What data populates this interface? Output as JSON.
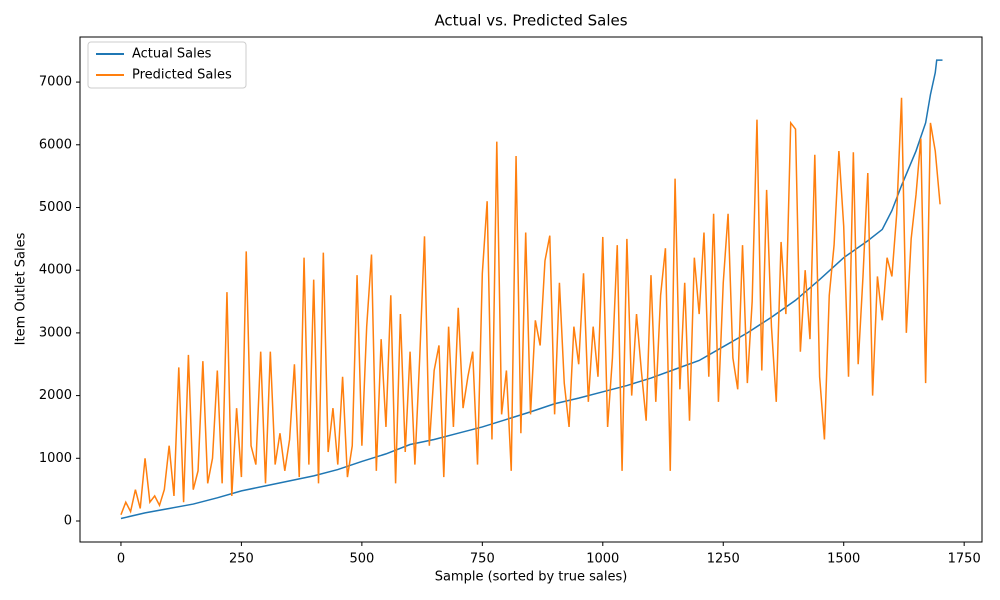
{
  "chart_data": {
    "type": "line",
    "title": "Actual vs. Predicted Sales",
    "x_label": "Sample (sorted by true sales)",
    "y_label": "Item Outlet Sales",
    "xlim": [
      -85,
      1787
    ],
    "ylim": [
      -335,
      7719
    ],
    "xticks": [
      0,
      250,
      500,
      750,
      1000,
      1250,
      1500,
      1750
    ],
    "yticks": [
      0,
      1000,
      2000,
      3000,
      4000,
      5000,
      6000,
      7000
    ],
    "grid": false,
    "legend": "upper left",
    "series": [
      {
        "name": "Actual Sales",
        "color": "#1f77b4",
        "x": [
          0,
          50,
          100,
          150,
          200,
          250,
          300,
          350,
          400,
          450,
          500,
          550,
          600,
          650,
          700,
          750,
          800,
          850,
          900,
          950,
          1000,
          1050,
          1100,
          1150,
          1200,
          1250,
          1300,
          1350,
          1400,
          1450,
          1500,
          1550,
          1580,
          1600,
          1620,
          1650,
          1670,
          1680,
          1690,
          1693,
          1705
        ],
        "values": [
          40,
          130,
          200,
          270,
          370,
          480,
          560,
          640,
          720,
          820,
          950,
          1070,
          1220,
          1300,
          1400,
          1500,
          1620,
          1740,
          1870,
          1960,
          2060,
          2160,
          2280,
          2420,
          2560,
          2780,
          3000,
          3250,
          3520,
          3850,
          4200,
          4470,
          4650,
          4950,
          5350,
          5900,
          6350,
          6800,
          7150,
          7350,
          7350
        ]
      },
      {
        "name": "Predicted Sales",
        "color": "#ff7f0e",
        "x": [
          0,
          10,
          20,
          30,
          40,
          50,
          60,
          70,
          80,
          90,
          100,
          110,
          120,
          130,
          140,
          150,
          160,
          170,
          180,
          190,
          200,
          210,
          220,
          230,
          240,
          250,
          260,
          270,
          280,
          290,
          300,
          310,
          320,
          330,
          340,
          350,
          360,
          370,
          380,
          390,
          400,
          410,
          420,
          430,
          440,
          450,
          460,
          470,
          480,
          490,
          500,
          510,
          520,
          530,
          540,
          550,
          560,
          570,
          580,
          590,
          600,
          610,
          620,
          630,
          640,
          650,
          660,
          670,
          680,
          690,
          700,
          710,
          720,
          730,
          740,
          750,
          760,
          770,
          780,
          790,
          800,
          810,
          820,
          830,
          840,
          850,
          860,
          870,
          880,
          890,
          900,
          910,
          920,
          930,
          940,
          950,
          960,
          970,
          980,
          990,
          1000,
          1010,
          1020,
          1030,
          1040,
          1050,
          1060,
          1070,
          1080,
          1090,
          1100,
          1110,
          1120,
          1130,
          1140,
          1150,
          1160,
          1170,
          1180,
          1190,
          1200,
          1210,
          1220,
          1230,
          1240,
          1250,
          1260,
          1270,
          1280,
          1290,
          1300,
          1310,
          1320,
          1330,
          1340,
          1350,
          1360,
          1370,
          1380,
          1390,
          1400,
          1410,
          1420,
          1430,
          1440,
          1450,
          1460,
          1470,
          1480,
          1490,
          1500,
          1510,
          1520,
          1530,
          1540,
          1550,
          1560,
          1570,
          1580,
          1590,
          1600,
          1610,
          1620,
          1630,
          1640,
          1650,
          1660,
          1670,
          1680,
          1690,
          1700
        ],
        "values": [
          100,
          300,
          150,
          500,
          200,
          1000,
          300,
          400,
          250,
          500,
          1200,
          400,
          2450,
          300,
          2650,
          500,
          800,
          2550,
          600,
          1000,
          2400,
          600,
          3650,
          400,
          1800,
          700,
          4300,
          1200,
          900,
          2700,
          600,
          2700,
          900,
          1400,
          800,
          1300,
          2500,
          700,
          4200,
          900,
          3850,
          600,
          4280,
          1100,
          1800,
          900,
          2300,
          700,
          1200,
          3920,
          1200,
          3100,
          4250,
          800,
          2900,
          1500,
          3600,
          600,
          3300,
          1100,
          2700,
          900,
          2600,
          4540,
          1200,
          2400,
          2800,
          700,
          3100,
          1500,
          3400,
          1800,
          2300,
          2700,
          900,
          3950,
          5100,
          1300,
          6050,
          1700,
          2400,
          800,
          5820,
          1400,
          4600,
          1700,
          3200,
          2800,
          4150,
          4550,
          1700,
          3800,
          2200,
          1500,
          3100,
          2500,
          3950,
          1900,
          3100,
          2300,
          4530,
          1500,
          2600,
          4400,
          800,
          4500,
          2000,
          3300,
          2400,
          1600,
          3920,
          1900,
          3600,
          4350,
          800,
          5460,
          2100,
          3800,
          1600,
          4200,
          3300,
          4600,
          2300,
          4900,
          1900,
          3800,
          4900,
          2600,
          2100,
          4400,
          2200,
          3500,
          6400,
          2400,
          5280,
          3100,
          1900,
          4450,
          3300,
          6350,
          6250,
          2700,
          4000,
          2900,
          5840,
          2300,
          1300,
          3600,
          4400,
          5900,
          4700,
          2300,
          5880,
          2500,
          3900,
          5550,
          2000,
          3900,
          3200,
          4200,
          3900,
          4900,
          6750,
          3000,
          4500,
          5200,
          6100,
          2200,
          6350,
          5900,
          5050
        ]
      }
    ]
  }
}
